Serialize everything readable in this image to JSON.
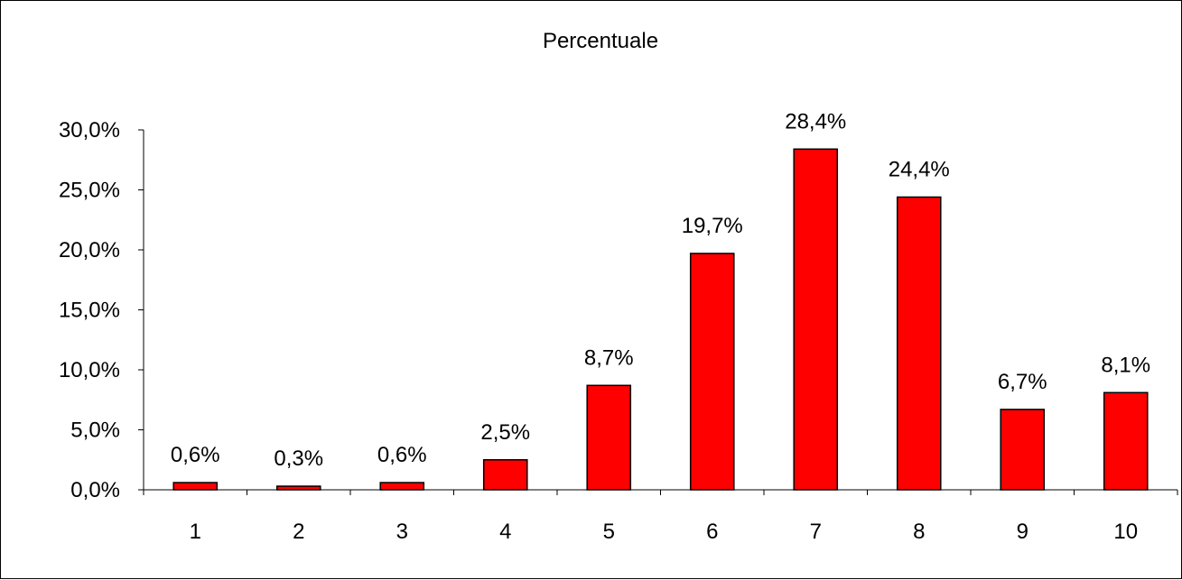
{
  "chart_data": {
    "type": "bar",
    "title": "Percentuale",
    "xlabel": "",
    "ylabel": "",
    "categories": [
      "1",
      "2",
      "3",
      "4",
      "5",
      "6",
      "7",
      "8",
      "9",
      "10"
    ],
    "values": [
      0.6,
      0.3,
      0.6,
      2.5,
      8.7,
      19.7,
      28.4,
      24.4,
      6.7,
      8.1
    ],
    "data_labels": [
      "0,6%",
      "0,3%",
      "0,6%",
      "2,5%",
      "8,7%",
      "19,7%",
      "28,4%",
      "24,4%",
      "6,7%",
      "8,1%"
    ],
    "ylim": [
      0,
      30
    ],
    "yticks": [
      0,
      5,
      10,
      15,
      20,
      25,
      30
    ],
    "ytick_labels": [
      "0,0%",
      "5,0%",
      "10,0%",
      "15,0%",
      "20,0%",
      "25,0%",
      "30,0%"
    ],
    "grid": false,
    "legend": "none",
    "colors": {
      "bar_fill": "#ff0000",
      "bar_stroke": "#000000",
      "axis": "#000000",
      "background": "#ffffff"
    }
  }
}
